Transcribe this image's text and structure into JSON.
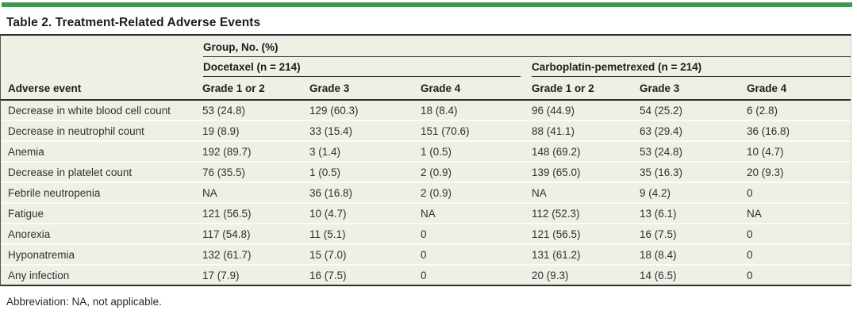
{
  "title": "Table 2. Treatment-Related Adverse Events",
  "table": {
    "group_header": "Group, No. (%)",
    "row_header": "Adverse event",
    "groups": [
      {
        "label": "Docetaxel (n = 214)",
        "columns": [
          "Grade 1 or 2",
          "Grade 3",
          "Grade 4"
        ]
      },
      {
        "label": "Carboplatin-pemetrexed (n = 214)",
        "columns": [
          "Grade 1 or 2",
          "Grade 3",
          "Grade 4"
        ]
      }
    ],
    "rows": [
      {
        "event": "Decrease in white blood cell count",
        "values": [
          "53 (24.8)",
          "129 (60.3)",
          "18 (8.4)",
          "96 (44.9)",
          "54 (25.2)",
          "6 (2.8)"
        ]
      },
      {
        "event": "Decrease in neutrophil count",
        "values": [
          "19 (8.9)",
          "33 (15.4)",
          "151 (70.6)",
          "88 (41.1)",
          "63 (29.4)",
          "36 (16.8)"
        ]
      },
      {
        "event": "Anemia",
        "values": [
          "192 (89.7)",
          "3 (1.4)",
          "1 (0.5)",
          "148 (69.2)",
          "53 (24.8)",
          "10 (4.7)"
        ]
      },
      {
        "event": "Decrease in platelet count",
        "values": [
          "76 (35.5)",
          "1 (0.5)",
          "2 (0.9)",
          "139 (65.0)",
          "35 (16.3)",
          "20 (9.3)"
        ]
      },
      {
        "event": "Febrile neutropenia",
        "values": [
          "NA",
          "36 (16.8)",
          "2 (0.9)",
          "NA",
          "9 (4.2)",
          "0"
        ]
      },
      {
        "event": "Fatigue",
        "values": [
          "121 (56.5)",
          "10 (4.7)",
          "NA",
          "112 (52.3)",
          "13 (6.1)",
          "NA"
        ]
      },
      {
        "event": "Anorexia",
        "values": [
          "117 (54.8)",
          "11 (5.1)",
          "0",
          "121 (56.5)",
          "16 (7.5)",
          "0"
        ]
      },
      {
        "event": "Hyponatremia",
        "values": [
          "132 (61.7)",
          "15 (7.0)",
          "0",
          "131 (61.2)",
          "18 (8.4)",
          "0"
        ]
      },
      {
        "event": "Any infection",
        "values": [
          "17 (7.9)",
          "16 (7.5)",
          "0",
          "20 (9.3)",
          "14 (6.5)",
          "0"
        ]
      }
    ]
  },
  "footnote": "Abbreviation: NA, not applicable.",
  "colors": {
    "accent_green": "#3f9652",
    "row_shade": "#f0efe5",
    "rule_dark": "#2e2e2e",
    "text": "#303030"
  }
}
